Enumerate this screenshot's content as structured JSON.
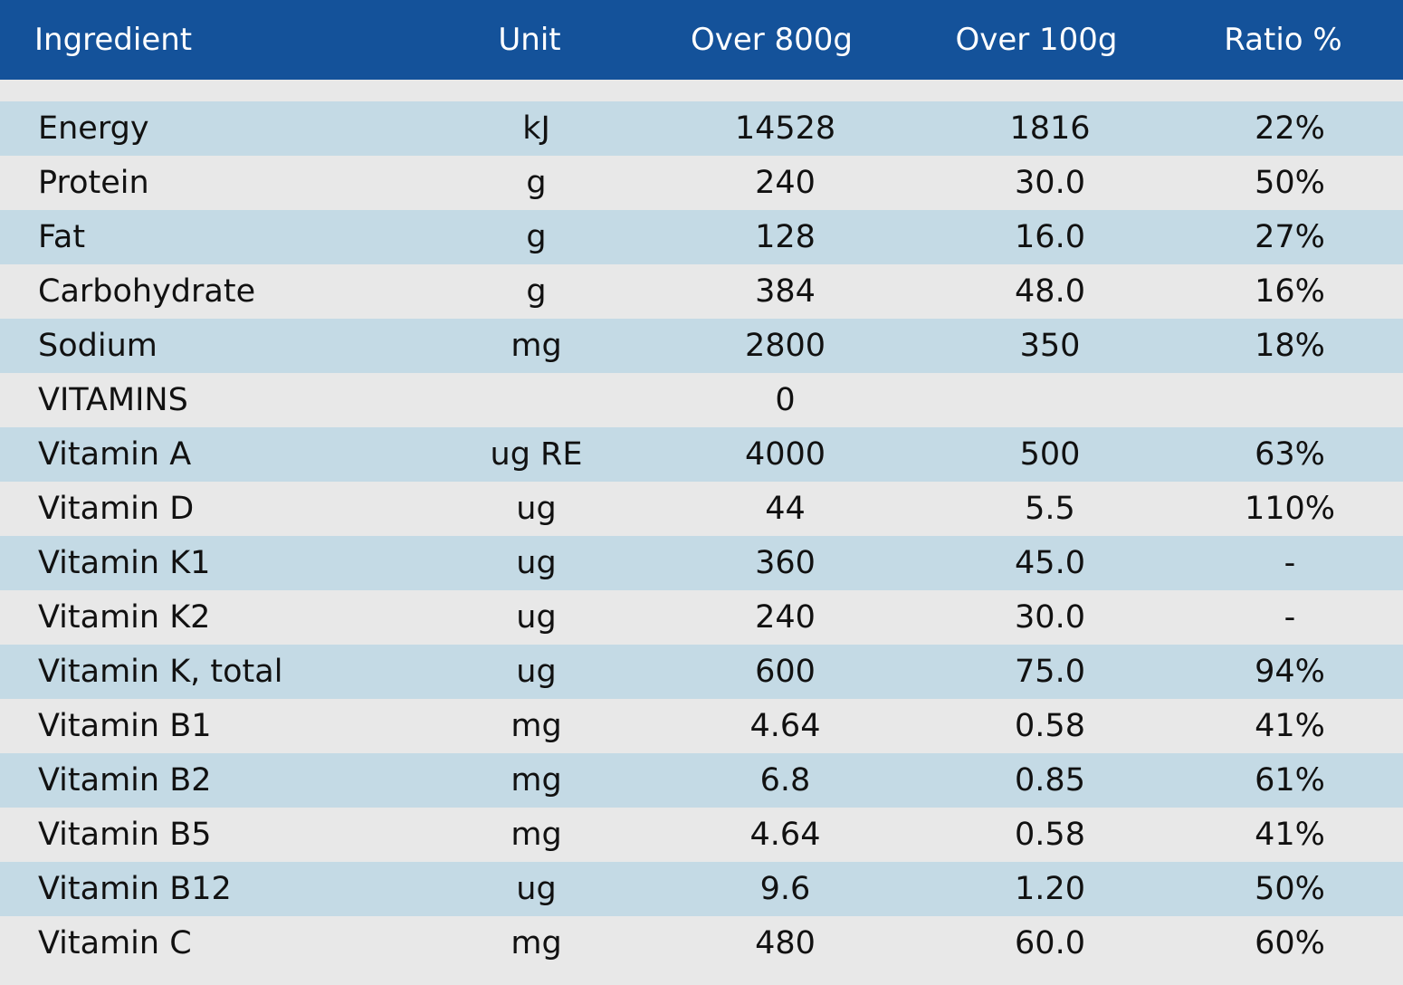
{
  "header": {
    "ingredient": "Ingredient",
    "unit": "Unit",
    "over800": "Over 800g",
    "over100": "Over 100g",
    "ratio": "Ratio %"
  },
  "colors": {
    "header_bg": "#14529a",
    "row_alt_bg": "#c4dae5",
    "row_plain_bg": "#e8e8e8"
  },
  "rows": [
    {
      "ingredient": "Energy",
      "unit": "kJ",
      "over800": "14528",
      "over100": "1816",
      "ratio": "22%"
    },
    {
      "ingredient": "Protein",
      "unit": "g",
      "over800": "240",
      "over100": "30.0",
      "ratio": "50%"
    },
    {
      "ingredient": "Fat",
      "unit": "g",
      "over800": "128",
      "over100": "16.0",
      "ratio": "27%"
    },
    {
      "ingredient": "Carbohydrate",
      "unit": "g",
      "over800": "384",
      "over100": "48.0",
      "ratio": "16%"
    },
    {
      "ingredient": "Sodium",
      "unit": "mg",
      "over800": "2800",
      "over100": "350",
      "ratio": "18%"
    },
    {
      "ingredient": "VITAMINS",
      "unit": "",
      "over800": "0",
      "over100": "",
      "ratio": ""
    },
    {
      "ingredient": "Vitamin A",
      "unit": "ug RE",
      "over800": "4000",
      "over100": "500",
      "ratio": "63%"
    },
    {
      "ingredient": "Vitamin D",
      "unit": "ug",
      "over800": "44",
      "over100": "5.5",
      "ratio": "110%"
    },
    {
      "ingredient": "Vitamin K1",
      "unit": "ug",
      "over800": "360",
      "over100": "45.0",
      "ratio": "-"
    },
    {
      "ingredient": "Vitamin K2",
      "unit": "ug",
      "over800": "240",
      "over100": "30.0",
      "ratio": "-"
    },
    {
      "ingredient": "Vitamin K, total",
      "unit": "ug",
      "over800": "600",
      "over100": "75.0",
      "ratio": "94%"
    },
    {
      "ingredient": "Vitamin B1",
      "unit": "mg",
      "over800": "4.64",
      "over100": "0.58",
      "ratio": "41%"
    },
    {
      "ingredient": "Vitamin B2",
      "unit": "mg",
      "over800": "6.8",
      "over100": "0.85",
      "ratio": "61%"
    },
    {
      "ingredient": "Vitamin B5",
      "unit": "mg",
      "over800": "4.64",
      "over100": "0.58",
      "ratio": "41%"
    },
    {
      "ingredient": "Vitamin B12",
      "unit": "ug",
      "over800": "9.6",
      "over100": "1.20",
      "ratio": "50%"
    },
    {
      "ingredient": "Vitamin C",
      "unit": "mg",
      "over800": "480",
      "over100": "60.0",
      "ratio": "60%"
    }
  ]
}
